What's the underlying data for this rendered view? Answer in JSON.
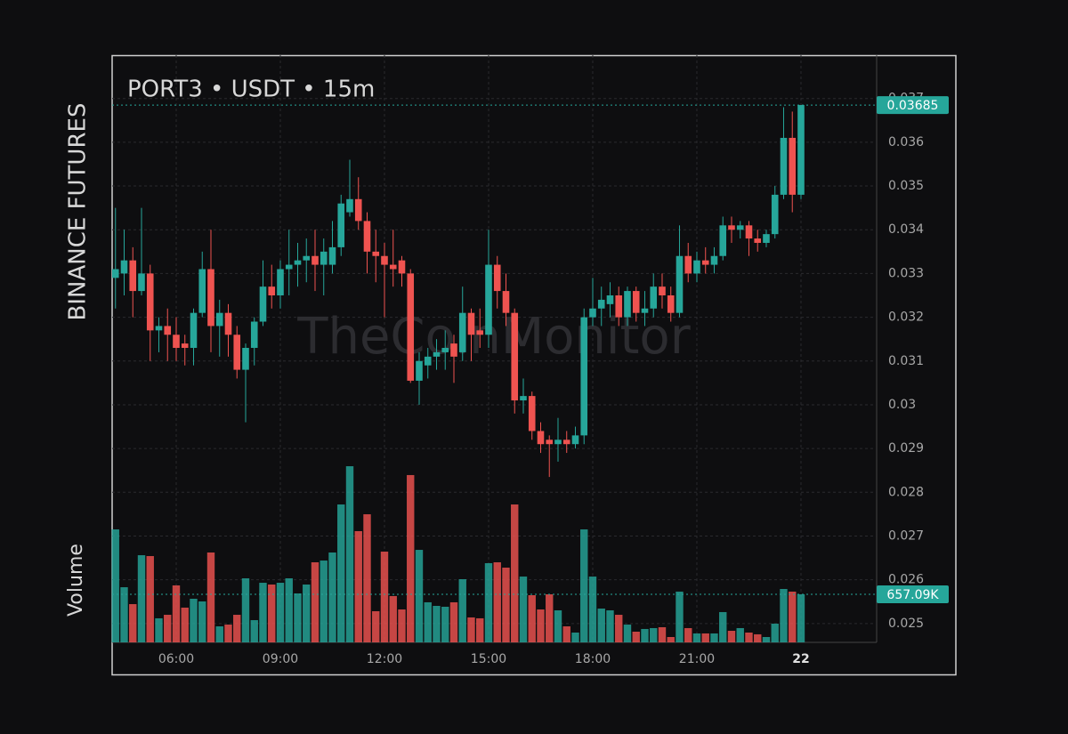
{
  "chart_data": {
    "type": "candlestick",
    "title": "PORT3 • USDT • 15m",
    "side_label": "BINANCE FUTURES",
    "volume_axis_label": "Volume",
    "watermark": "TheCoinMonitor",
    "x": [
      4.25,
      4.5,
      4.75,
      5,
      5.25,
      5.5,
      5.75,
      6,
      6.25,
      6.5,
      6.75,
      7,
      7.25,
      7.5,
      7.75,
      8,
      8.25,
      8.5,
      8.75,
      9,
      9.25,
      9.5,
      9.75,
      10,
      10.25,
      10.5,
      10.75,
      11,
      11.25,
      11.5,
      11.75,
      12,
      12.25,
      12.5,
      12.75,
      13,
      13.25,
      13.5,
      13.75,
      14,
      14.25,
      14.5,
      14.75,
      15,
      15.25,
      15.5,
      15.75,
      16,
      16.25,
      16.5,
      16.75,
      17,
      17.25,
      17.5,
      17.75,
      18,
      18.25,
      18.5,
      18.75,
      19,
      19.25,
      19.5,
      19.75,
      20,
      20.25,
      20.5,
      20.75,
      21,
      21.25,
      21.5,
      21.75,
      22,
      22.25,
      22.5,
      22.75,
      23,
      23.25,
      23.5,
      23.75,
      24
    ],
    "open": [
      0.0329,
      0.033,
      0.0333,
      0.0326,
      0.033,
      0.0317,
      0.0318,
      0.0316,
      0.0314,
      0.0313,
      0.0321,
      0.0331,
      0.0318,
      0.0321,
      0.0316,
      0.0308,
      0.0313,
      0.0319,
      0.0327,
      0.0325,
      0.0331,
      0.0332,
      0.0333,
      0.0334,
      0.0332,
      0.0332,
      0.0336,
      0.0344,
      0.0347,
      0.0342,
      0.0335,
      0.0334,
      0.0332,
      0.0333,
      0.033,
      0.03055,
      0.0309,
      0.0311,
      0.0312,
      0.0314,
      0.0312,
      0.0321,
      0.0317,
      0.0316,
      0.0332,
      0.0326,
      0.0321,
      0.0301,
      0.0302,
      0.0294,
      0.0292,
      0.0291,
      0.0292,
      0.0291,
      0.0293,
      0.032,
      0.0322,
      0.0323,
      0.0325,
      0.032,
      0.0326,
      0.0321,
      0.0322,
      0.0327,
      0.0325,
      0.0321,
      0.0334,
      0.033,
      0.0333,
      0.0332,
      0.0334,
      0.0341,
      0.034,
      0.0341,
      0.0338,
      0.0337,
      0.0339,
      0.0348,
      0.0361,
      0.0348
    ],
    "high": [
      0.0345,
      0.034,
      0.0336,
      0.0345,
      0.0332,
      0.032,
      0.0322,
      0.032,
      0.0316,
      0.0322,
      0.0335,
      0.034,
      0.0324,
      0.0323,
      0.0318,
      0.0314,
      0.032,
      0.0333,
      0.0332,
      0.0333,
      0.034,
      0.0337,
      0.0338,
      0.034,
      0.0338,
      0.0342,
      0.0348,
      0.0356,
      0.0352,
      0.0344,
      0.034,
      0.0337,
      0.034,
      0.0334,
      0.0331,
      0.0312,
      0.0313,
      0.0315,
      0.0317,
      0.0316,
      0.0327,
      0.0322,
      0.0322,
      0.034,
      0.0334,
      0.033,
      0.0322,
      0.0306,
      0.0303,
      0.0296,
      0.0293,
      0.0297,
      0.0294,
      0.0295,
      0.0322,
      0.0329,
      0.0327,
      0.0328,
      0.0327,
      0.0327,
      0.0327,
      0.0326,
      0.033,
      0.033,
      0.0327,
      0.0341,
      0.0337,
      0.0335,
      0.0336,
      0.0336,
      0.0343,
      0.0343,
      0.0342,
      0.0342,
      0.034,
      0.034,
      0.035,
      0.0368,
      0.0367,
      0.03685
    ],
    "low": [
      0.0322,
      0.0325,
      0.032,
      0.0325,
      0.031,
      0.0312,
      0.031,
      0.031,
      0.0309,
      0.0309,
      0.032,
      0.0312,
      0.0311,
      0.0311,
      0.0306,
      0.0296,
      0.0309,
      0.0318,
      0.0322,
      0.0322,
      0.0325,
      0.0327,
      0.0328,
      0.0326,
      0.0325,
      0.033,
      0.0334,
      0.0343,
      0.034,
      0.033,
      0.0328,
      0.032,
      0.0327,
      0.0327,
      0.0305,
      0.03,
      0.0306,
      0.0308,
      0.0308,
      0.0305,
      0.031,
      0.031,
      0.0313,
      0.0313,
      0.0322,
      0.0318,
      0.0298,
      0.0298,
      0.0292,
      0.0289,
      0.02835,
      0.0287,
      0.0289,
      0.029,
      0.0291,
      0.0318,
      0.0318,
      0.032,
      0.0318,
      0.0318,
      0.0319,
      0.0318,
      0.032,
      0.0322,
      0.0319,
      0.032,
      0.0328,
      0.0328,
      0.033,
      0.033,
      0.0333,
      0.0337,
      0.0338,
      0.0334,
      0.0335,
      0.0336,
      0.0338,
      0.0347,
      0.0344,
      0.0347
    ],
    "close": [
      0.0331,
      0.0333,
      0.0326,
      0.033,
      0.0317,
      0.0318,
      0.0316,
      0.0313,
      0.0313,
      0.0321,
      0.0331,
      0.0318,
      0.0321,
      0.0316,
      0.0308,
      0.0313,
      0.0319,
      0.0327,
      0.0325,
      0.0331,
      0.0332,
      0.0333,
      0.0334,
      0.0332,
      0.0335,
      0.0336,
      0.0346,
      0.0347,
      0.0342,
      0.0335,
      0.0334,
      0.0332,
      0.0331,
      0.033,
      0.03055,
      0.031,
      0.0311,
      0.0312,
      0.0313,
      0.0311,
      0.0321,
      0.0316,
      0.0316,
      0.0332,
      0.0326,
      0.0321,
      0.0301,
      0.0302,
      0.0294,
      0.0291,
      0.0291,
      0.0292,
      0.0291,
      0.0293,
      0.032,
      0.0322,
      0.0324,
      0.0325,
      0.032,
      0.0326,
      0.0321,
      0.0322,
      0.0327,
      0.0325,
      0.0321,
      0.0334,
      0.033,
      0.0333,
      0.0332,
      0.0334,
      0.0341,
      0.034,
      0.0341,
      0.0338,
      0.0337,
      0.0339,
      0.0348,
      0.0361,
      0.0348,
      0.03685
    ],
    "volume": [
      1545000,
      754000,
      523000,
      1192000,
      1180000,
      329000,
      377000,
      779000,
      475000,
      596000,
      560000,
      1229000,
      219000,
      243000,
      377000,
      876000,
      304000,
      815000,
      791000,
      815000,
      876000,
      669000,
      791000,
      1095000,
      1119000,
      1229000,
      1886000,
      2409000,
      1521000,
      1752000,
      426000,
      1241000,
      633000,
      450000,
      2288000,
      1265000,
      548000,
      499000,
      487000,
      548000,
      864000,
      341000,
      329000,
      1083000,
      1095000,
      1022000,
      1886000,
      900000,
      645000,
      450000,
      657000,
      438000,
      219000,
      134000,
      1545000,
      900000,
      462000,
      438000,
      377000,
      243000,
      146000,
      183000,
      195000,
      207000,
      73000,
      694000,
      195000,
      122000,
      122000,
      122000,
      414000,
      158000,
      195000,
      134000,
      110000,
      73000,
      256000,
      730000,
      694000,
      657090
    ],
    "last_volume_label": "657.09K",
    "xlim": [
      4.154,
      26.18
    ],
    "xticks": [
      {
        "value": 6,
        "label": "06:00"
      },
      {
        "value": 9,
        "label": "09:00"
      },
      {
        "value": 12,
        "label": "12:00"
      },
      {
        "value": 15,
        "label": "15:00"
      },
      {
        "value": 18,
        "label": "18:00"
      },
      {
        "value": 21,
        "label": "21:00"
      },
      {
        "value": 24,
        "label": "22"
      }
    ],
    "ylim": [
      0.02457,
      0.03799
    ],
    "yticks": [
      0.025,
      0.026,
      0.027,
      0.028,
      0.029,
      0.03,
      0.031,
      0.032,
      0.033,
      0.034,
      0.035,
      0.036,
      0.037
    ],
    "y2lim": [
      0,
      8031000
    ],
    "grid": true,
    "up_color": "#26a69a",
    "down_color": "#ef5350"
  }
}
